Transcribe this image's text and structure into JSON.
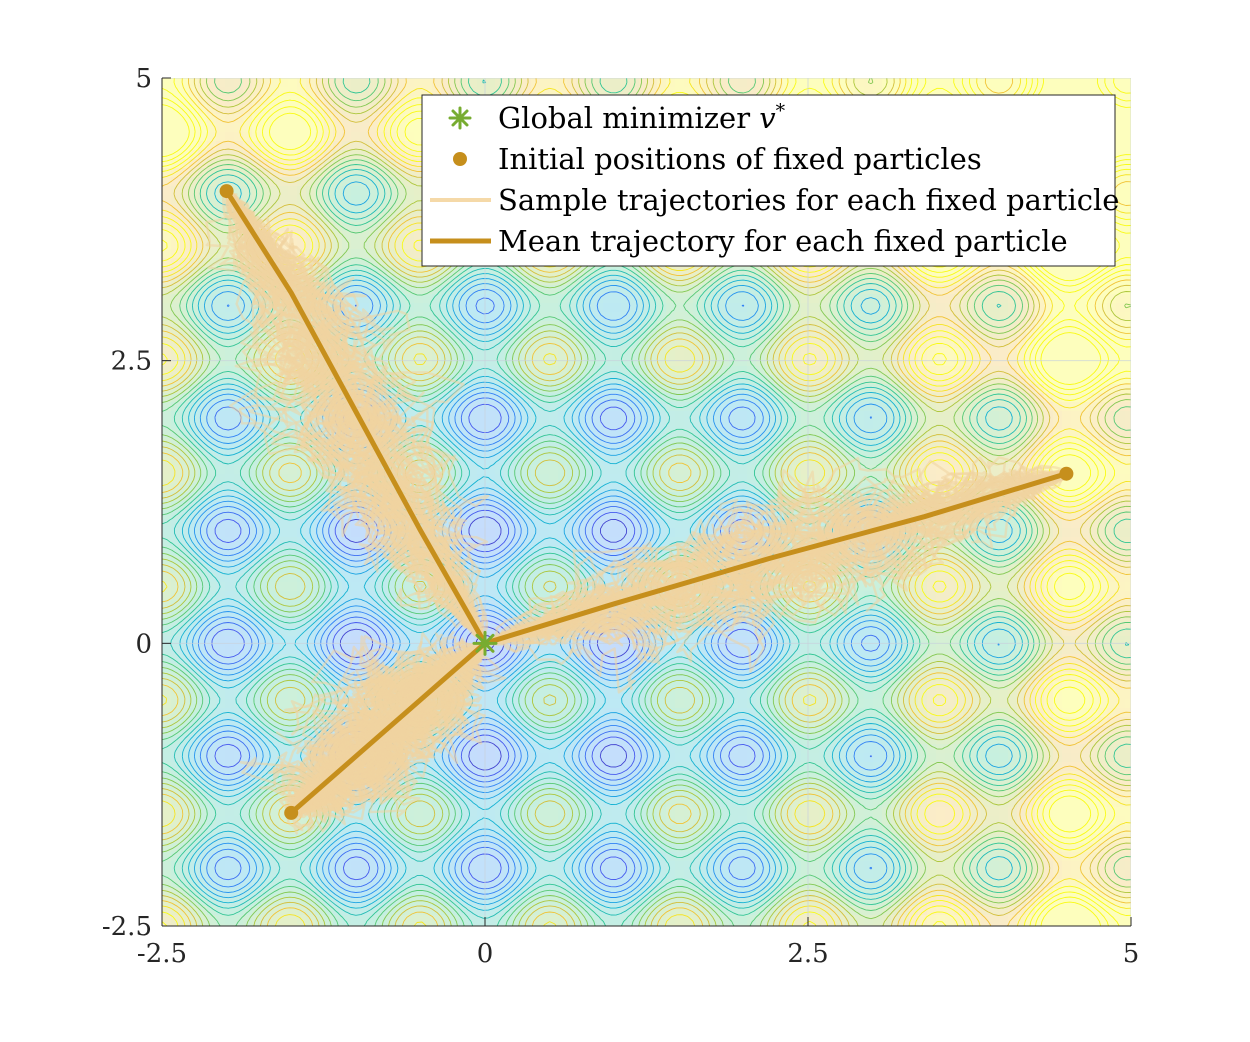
{
  "chart_data": {
    "type": "contour",
    "title": "",
    "xlabel": "",
    "ylabel": "",
    "xlim": [
      -2.5,
      5
    ],
    "ylim": [
      -2.5,
      5
    ],
    "xticks": [
      -2.5,
      0,
      2.5,
      5
    ],
    "yticks": [
      -2.5,
      0,
      2.5,
      5
    ],
    "xtick_labels": [
      "-2.5",
      "0",
      "2.5",
      "5"
    ],
    "ytick_labels": [
      "-2.5",
      "0",
      "2.5",
      "5"
    ],
    "grid": true,
    "legend_position": "top-right",
    "background": "contour of a Rastrigin-type objective function",
    "global_minimizer": {
      "x": 0,
      "y": 0
    },
    "fixed_particles": [
      {
        "start": [
          -2,
          4
        ],
        "mean_trajectory": [
          [
            -2,
            4
          ],
          [
            -1.5,
            3.1
          ],
          [
            -1,
            2.05
          ],
          [
            -0.5,
            1.0
          ],
          [
            0,
            0
          ]
        ]
      },
      {
        "start": [
          4.5,
          1.5
        ],
        "mean_trajectory": [
          [
            4.5,
            1.5
          ],
          [
            3.4,
            1.12
          ],
          [
            2.2,
            0.75
          ],
          [
            1.0,
            0.35
          ],
          [
            0,
            0
          ]
        ]
      },
      {
        "start": [
          -1.5,
          -1.5
        ],
        "mean_trajectory": [
          [
            -1.5,
            -1.5
          ],
          [
            -1.0,
            -1.0
          ],
          [
            -0.5,
            -0.5
          ],
          [
            0,
            0
          ]
        ]
      }
    ],
    "series": [
      {
        "name": "Global minimizer v*",
        "marker": "asterisk",
        "color": "#77ac30"
      },
      {
        "name": "Initial positions of fixed particles",
        "marker": "circle",
        "color": "#c68f1c"
      },
      {
        "name": "Sample trajectories for each fixed particle",
        "line": "thin",
        "color": "#f5d9a8"
      },
      {
        "name": "Mean trajectory for each fixed particle",
        "line": "thick",
        "color": "#c68f1c"
      }
    ]
  },
  "legend": {
    "items": [
      {
        "text": "Global minimizer ",
        "math": "v",
        "sup": "*"
      },
      {
        "text": "Initial positions of fixed particles"
      },
      {
        "text": "Sample trajectories for each fixed particle"
      },
      {
        "text": "Mean trajectory for each fixed particle"
      }
    ]
  },
  "colors": {
    "minimizer": "#77ac30",
    "particle": "#c68f1c",
    "sample": "#f0d4a0",
    "mean": "#c68f1c",
    "grid": "#c8d2dc"
  }
}
